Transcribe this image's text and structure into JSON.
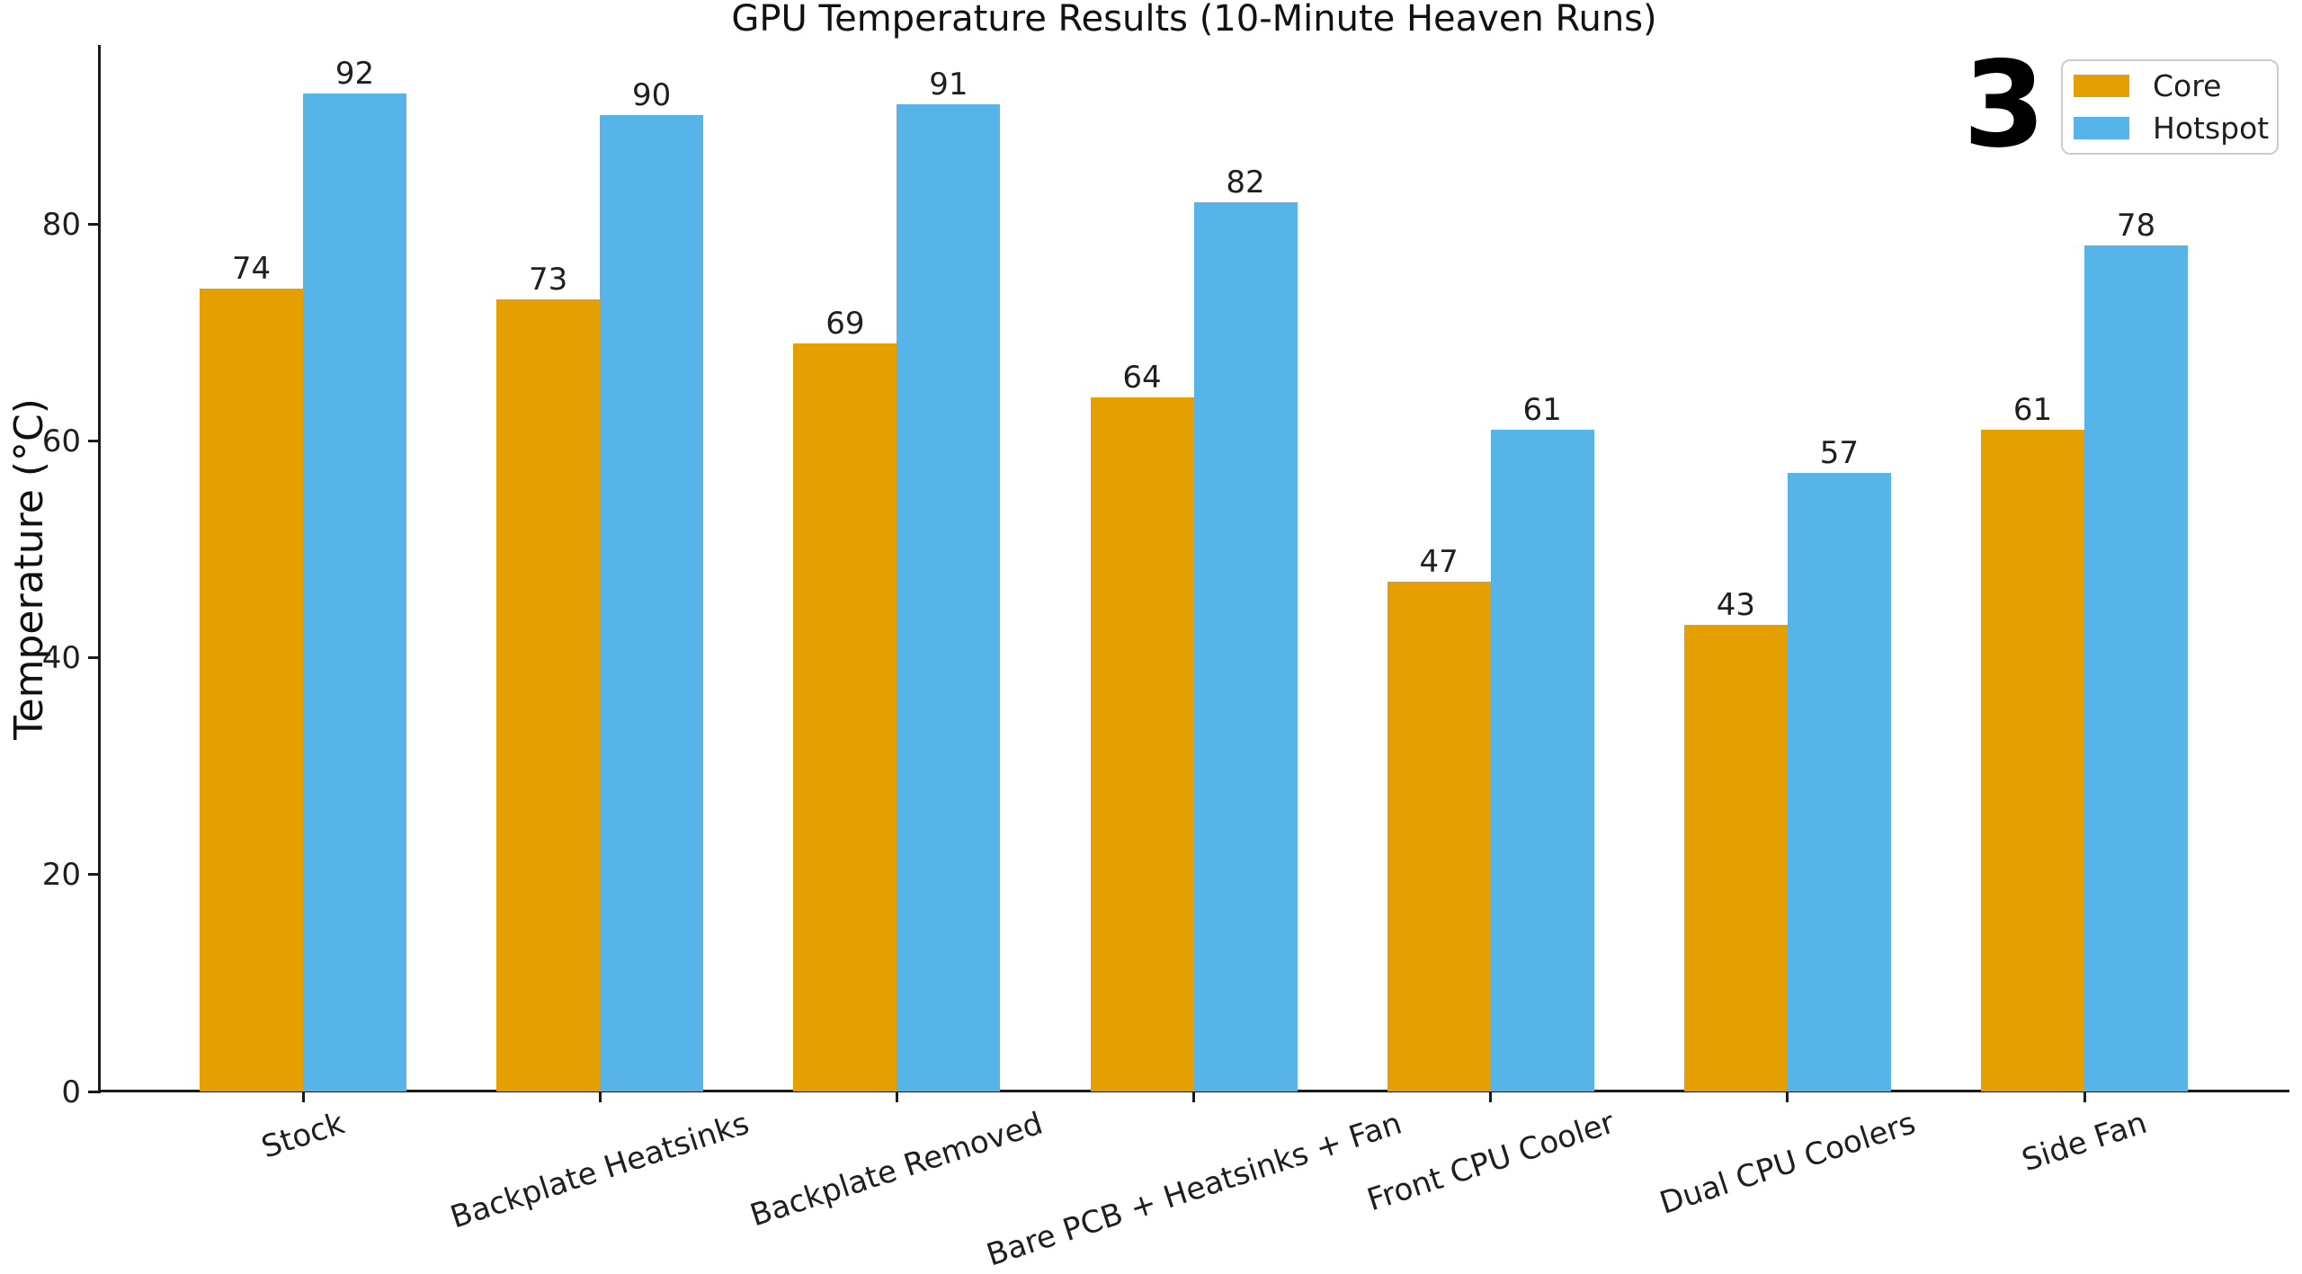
{
  "annotation": {
    "text": "3"
  },
  "chart_data": {
    "type": "bar",
    "title": "GPU Temperature Results (10-Minute Heaven Runs)",
    "xlabel": "",
    "ylabel": "Temperature (°C)",
    "categories": [
      "Stock",
      "Backplate Heatsinks",
      "Backplate Removed",
      "Bare PCB + Heatsinks + Fan",
      "Front CPU Cooler",
      "Dual CPU Coolers",
      "Side Fan"
    ],
    "series": [
      {
        "name": "Core",
        "color": "#E69F00",
        "values": [
          74,
          73,
          69,
          64,
          47,
          43,
          61
        ]
      },
      {
        "name": "Hotspot",
        "color": "#56B4E9",
        "values": [
          92,
          90,
          91,
          82,
          61,
          57,
          78
        ]
      }
    ],
    "yticks": [
      0,
      20,
      40,
      60,
      80
    ],
    "ylim": [
      0,
      96.5
    ],
    "grid": false,
    "bar_value_labels": true,
    "legend_position": "upper right",
    "xtick_rotation_deg": 18,
    "text_color": "#1f1f1f",
    "spine_color": "#1a1a1a",
    "background_color": "#ffffff"
  }
}
